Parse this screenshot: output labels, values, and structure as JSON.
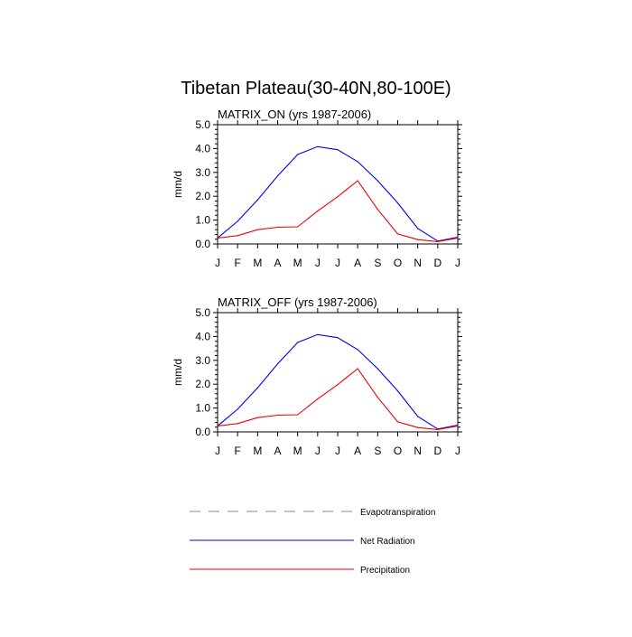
{
  "title": "Tibetan Plateau(30-40N,80-100E)",
  "colors": {
    "evapotranspiration": "#888888",
    "net_radiation": "#0000ee",
    "precipitation": "#ee0000"
  },
  "legend": {
    "placement": "bottom",
    "items": [
      {
        "label": "Evapotranspiration",
        "style": "dashed",
        "color_key": "evapotranspiration"
      },
      {
        "label": "Net Radiation",
        "style": "solid",
        "color_key": "net_radiation"
      },
      {
        "label": "Precipitation",
        "style": "solid",
        "color_key": "precipitation"
      }
    ]
  },
  "chart_data": [
    {
      "type": "line",
      "title": "MATRIX_ON (yrs 1987-2006)",
      "xlabel": "",
      "ylabel": "mm/d",
      "categories": [
        "J",
        "F",
        "M",
        "A",
        "M",
        "J",
        "J",
        "A",
        "S",
        "O",
        "N",
        "D",
        "J"
      ],
      "ylim": [
        0,
        5
      ],
      "yticks": [
        "0.0",
        "1.0",
        "2.0",
        "3.0",
        "4.0",
        "5.0"
      ],
      "grid": false,
      "series": [
        {
          "name": "Net Radiation",
          "color_key": "net_radiation",
          "values": [
            0.25,
            0.95,
            1.85,
            2.85,
            3.75,
            4.08,
            3.95,
            3.45,
            2.65,
            1.72,
            0.65,
            0.12,
            0.28
          ]
        },
        {
          "name": "Precipitation",
          "color_key": "precipitation",
          "values": [
            0.25,
            0.35,
            0.6,
            0.7,
            0.72,
            1.38,
            1.98,
            2.65,
            1.45,
            0.42,
            0.18,
            0.1,
            0.25
          ]
        }
      ]
    },
    {
      "type": "line",
      "title": "MATRIX_OFF (yrs 1987-2006)",
      "xlabel": "",
      "ylabel": "mm/d",
      "categories": [
        "J",
        "F",
        "M",
        "A",
        "M",
        "J",
        "J",
        "A",
        "S",
        "O",
        "N",
        "D",
        "J"
      ],
      "ylim": [
        0,
        5
      ],
      "yticks": [
        "0.0",
        "1.0",
        "2.0",
        "3.0",
        "4.0",
        "5.0"
      ],
      "grid": false,
      "series": [
        {
          "name": "Net Radiation",
          "color_key": "net_radiation",
          "values": [
            0.25,
            0.95,
            1.85,
            2.85,
            3.75,
            4.08,
            3.95,
            3.45,
            2.65,
            1.72,
            0.65,
            0.12,
            0.28
          ]
        },
        {
          "name": "Precipitation",
          "color_key": "precipitation",
          "values": [
            0.25,
            0.35,
            0.6,
            0.7,
            0.72,
            1.38,
            1.98,
            2.65,
            1.45,
            0.42,
            0.18,
            0.1,
            0.25
          ]
        }
      ]
    }
  ]
}
